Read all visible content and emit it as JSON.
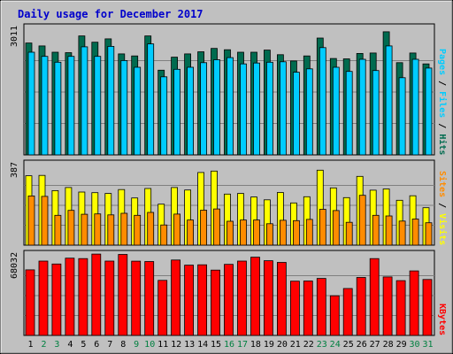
{
  "chart_data": {
    "type": "bar",
    "title": "Daily usage for December 2017",
    "categories": [
      "1",
      "2",
      "3",
      "4",
      "5",
      "6",
      "7",
      "8",
      "9",
      "10",
      "11",
      "12",
      "13",
      "14",
      "15",
      "16",
      "17",
      "18",
      "19",
      "20",
      "21",
      "22",
      "23",
      "24",
      "25",
      "26",
      "27",
      "28",
      "29",
      "30",
      "31"
    ],
    "weekend_days": [
      2,
      3,
      9,
      10,
      16,
      17,
      23,
      24,
      30,
      31
    ],
    "colors": {
      "hits": "#006b4f",
      "files": "#00ccff",
      "pages": "#00ccff",
      "visits": "#ffff00",
      "sites": "#ff8c00",
      "kbytes": "#ff0000",
      "title": "#0000cc",
      "weekend_label": "#008040",
      "weekday_label": "#000000",
      "plot_bg": "#c0c0c0",
      "border": "#000000"
    },
    "panels": [
      {
        "id": "top",
        "ymax_label": "3011",
        "ymax": 3011,
        "legend": [
          {
            "text": "Pages",
            "color": "#00ccff"
          },
          {
            "text": " / ",
            "color": "#000000"
          },
          {
            "text": "Files",
            "color": "#00ccff"
          },
          {
            "text": " / ",
            "color": "#000000"
          },
          {
            "text": "Hits",
            "color": "#006b4f"
          }
        ],
        "series": [
          {
            "name": "Hits",
            "color": "#006b4f",
            "values": [
              2680,
              2610,
              2460,
              2450,
              2850,
              2700,
              2780,
              2420,
              2370,
              2850,
              2030,
              2340,
              2420,
              2470,
              2550,
              2520,
              2460,
              2460,
              2510,
              2400,
              2250,
              2370,
              2800,
              2310,
              2300,
              2430,
              2440,
              2950,
              2210,
              2440,
              2180
            ]
          },
          {
            "name": "Files",
            "color": "#00ccff",
            "values": [
              2460,
              2360,
              2220,
              2360,
              2590,
              2360,
              2600,
              2260,
              2100,
              2660,
              1870,
              2050,
              2100,
              2210,
              2280,
              2330,
              2180,
              2200,
              2220,
              2230,
              1980,
              2060,
              2570,
              2100,
              2000,
              2290,
              2020,
              2610,
              1850,
              2290,
              2080
            ]
          },
          {
            "name": "Pages",
            "color": "#00ccff",
            "values": []
          }
        ]
      },
      {
        "id": "middle",
        "ymax_label": "387",
        "ymax": 387,
        "legend": [
          {
            "text": "Sites",
            "color": "#ff8c00"
          },
          {
            "text": " / ",
            "color": "#000000"
          },
          {
            "text": "Visits",
            "color": "#ffff00"
          }
        ],
        "series": [
          {
            "name": "Visits",
            "color": "#ffff00",
            "values": [
              337,
              339,
              265,
              280,
              258,
              255,
              251,
              270,
              229,
              275,
              199,
              280,
              268,
              353,
              360,
              248,
              251,
              234,
              220,
              256,
              205,
              235,
              364,
              278,
              231,
              334,
              267,
              273,
              218,
              240,
              182
            ]
          },
          {
            "name": "Sites",
            "color": "#ff8c00",
            "values": [
              239,
              237,
              145,
              169,
              150,
              152,
              147,
              155,
              145,
              159,
              98,
              151,
              122,
              170,
              176,
              116,
              122,
              122,
              104,
              121,
              119,
              125,
              174,
              168,
              111,
              242,
              145,
              142,
              117,
              127,
              109
            ]
          }
        ]
      },
      {
        "id": "bottom",
        "ymax_label": "68032",
        "ymax": 68032,
        "legend": [
          {
            "text": "KBytes",
            "color": "#ff0000"
          }
        ],
        "series": [
          {
            "name": "KBytes",
            "color": "#ff0000",
            "values": [
              56000,
              63500,
              61000,
              66000,
              65600,
              69500,
              63500,
              69200,
              63400,
              63100,
              47000,
              64400,
              60000,
              60300,
              55800,
              60700,
              63500,
              66800,
              63800,
              62400,
              46300,
              46500,
              48700,
              33900,
              40100,
              49500,
              65600,
              50000,
              46800,
              55100,
              47800
            ]
          }
        ]
      }
    ]
  }
}
